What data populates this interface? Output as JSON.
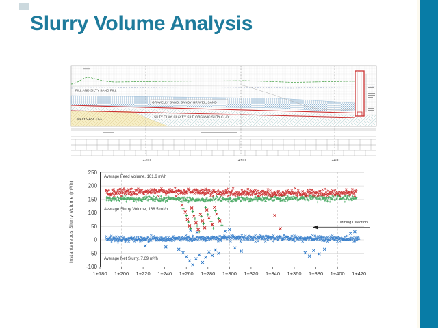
{
  "slide": {
    "title": "Slurry Volume Analysis",
    "accent_color": "#087CA6",
    "title_color": "#1E7B9C",
    "chip_color": "#ccd9de"
  },
  "cross_section": {
    "layer_labels": [
      "FILL AND SILTY SAND FILL",
      "GRAVELLY SAND, SANDY GRAVEL, SAND",
      "SILTY CLAY TILL",
      "SILTY CLAY, CLAYEY SILT, ORGANIC SILTY CLAY"
    ],
    "station_labels": [
      "1+200",
      "1+300",
      "1+400"
    ],
    "layer_colors": {
      "gravel_hatch": "#7aa7cc",
      "clay_hatch": "#a8cfcf",
      "till_fill": "#f6eec5",
      "boundary_red": "#cc3333",
      "surface_green": "#3f9e3f"
    }
  },
  "chart_data": {
    "type": "scatter",
    "title": "",
    "xlabel": "",
    "ylabel": "Instantaneous Slurry Volume (m³/h)",
    "ylim": [
      -100,
      250
    ],
    "yticks": [
      250,
      200,
      150,
      100,
      50,
      0,
      -50,
      -100
    ],
    "xtick_labels": [
      "1+180",
      "1+200",
      "1+220",
      "1+240",
      "1+260",
      "1+280",
      "1+300",
      "1+320",
      "1+340",
      "1+360",
      "1+380",
      "1+400",
      "1+420"
    ],
    "x_range": [
      1180,
      1420
    ],
    "grid": {
      "horizontal": true,
      "vertical_dashed_at": [
        1200,
        1300,
        1400
      ],
      "legend": "none"
    },
    "annotations": {
      "feed": "Average Feed Volume, 161.6 m³/h",
      "slurry": "Average Slurry Volume, 168.5 m³/h",
      "net": "Average Net Slurry, 7.69 m³/h",
      "mining": "Mining Direction"
    },
    "series": [
      {
        "name": "Feed Volume",
        "marker": "x",
        "color": "#c41414",
        "stated_average": 161.6,
        "visual_center": 176,
        "spread": 9,
        "data_x": [
          1186,
          1418
        ]
      },
      {
        "name": "Slurry Volume",
        "marker": "+",
        "color": "#2f9e4e",
        "stated_average": 168.5,
        "visual_center": 152,
        "spread": 7,
        "data_x": [
          1186,
          1418
        ]
      },
      {
        "name": "Net Slurry",
        "marker": "x",
        "color": "#1e6fc4",
        "stated_average": 7.69,
        "visual_center": 5,
        "spread": 7,
        "data_x": [
          1186,
          1420
        ]
      }
    ],
    "outliers": {
      "feed": [
        [
          1256,
          128
        ],
        [
          1259,
          103
        ],
        [
          1261,
          76
        ],
        [
          1263,
          52
        ],
        [
          1265,
          118
        ],
        [
          1267,
          88
        ],
        [
          1269,
          63
        ],
        [
          1271,
          38
        ],
        [
          1273,
          95
        ],
        [
          1275,
          70
        ],
        [
          1277,
          45
        ],
        [
          1279,
          110
        ],
        [
          1281,
          82
        ],
        [
          1284,
          57
        ],
        [
          1286,
          120
        ],
        [
          1288,
          96
        ],
        [
          1291,
          70
        ],
        [
          1342,
          91
        ],
        [
          1347,
          42
        ]
      ],
      "slurry": [
        [
          1257,
          115
        ],
        [
          1260,
          90
        ],
        [
          1262,
          66
        ],
        [
          1264,
          42
        ],
        [
          1266,
          105
        ],
        [
          1268,
          78
        ],
        [
          1270,
          52
        ],
        [
          1272,
          30
        ],
        [
          1274,
          88
        ],
        [
          1276,
          60
        ],
        [
          1278,
          120
        ],
        [
          1280,
          94
        ],
        [
          1283,
          68
        ],
        [
          1285,
          44
        ],
        [
          1287,
          108
        ],
        [
          1290,
          80
        ],
        [
          1293,
          55
        ]
      ],
      "net": [
        [
          1222,
          -22
        ],
        [
          1241,
          -26
        ],
        [
          1253,
          -35
        ],
        [
          1257,
          -48
        ],
        [
          1260,
          -62
        ],
        [
          1263,
          -78
        ],
        [
          1266,
          -92
        ],
        [
          1269,
          -70
        ],
        [
          1272,
          -55
        ],
        [
          1275,
          -84
        ],
        [
          1278,
          -65
        ],
        [
          1281,
          -45
        ],
        [
          1284,
          -58
        ],
        [
          1287,
          -38
        ],
        [
          1290,
          -50
        ],
        [
          1305,
          -30
        ],
        [
          1311,
          -42
        ],
        [
          1370,
          -48
        ],
        [
          1374,
          -60
        ],
        [
          1378,
          -40
        ],
        [
          1383,
          -52
        ],
        [
          1388,
          -35
        ],
        [
          1264,
          35
        ],
        [
          1270,
          28
        ],
        [
          1296,
          32
        ],
        [
          1300,
          38
        ],
        [
          1412,
          24
        ],
        [
          1416,
          30
        ]
      ]
    }
  }
}
